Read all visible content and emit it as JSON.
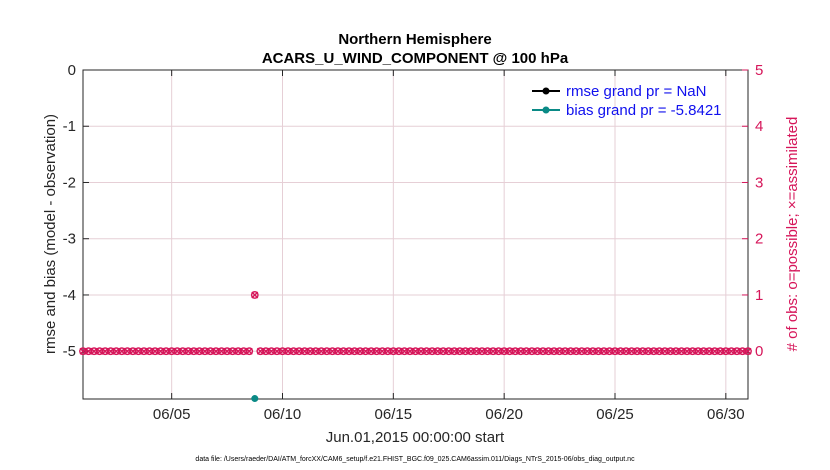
{
  "chart_data": {
    "type": "scatter",
    "title_lines": [
      "Northern Hemisphere",
      "ACARS_U_WIND_COMPONENT @ 100 hPa"
    ],
    "xlabel": "Jun.01,2015 00:00:00 start",
    "ylabel_left": "rmse and bias (model - observation)",
    "ylabel_right": "# of obs: o=possible; ×=assimilated",
    "x_ticks": [
      "06/05",
      "06/10",
      "06/15",
      "06/20",
      "06/25",
      "06/30"
    ],
    "x_tick_days": [
      5,
      10,
      15,
      20,
      25,
      30
    ],
    "x_range_days": [
      1,
      31
    ],
    "ylim_left": [
      -5.85,
      0
    ],
    "y_ticks_left": [
      "0",
      "-1",
      "-2",
      "-3",
      "-4",
      "-5"
    ],
    "y_tick_values_left": [
      0,
      -1,
      -2,
      -3,
      -4,
      -5
    ],
    "ylim_right": [
      -0.85,
      5
    ],
    "y_ticks_right": [
      "5",
      "4",
      "3",
      "2",
      "1",
      "0"
    ],
    "y_tick_values_right": [
      5,
      4,
      3,
      2,
      1,
      0
    ],
    "grid": true,
    "legend_position": "top-right",
    "legend": [
      {
        "label": "rmse grand pr = NaN",
        "color": "#000000"
      },
      {
        "label": "bias grand pr = -5.8421",
        "color": "#0a8a86"
      }
    ],
    "series": [
      {
        "name": "bias",
        "color": "#0a8a86",
        "axis": "left",
        "points": [
          {
            "x": 8.75,
            "y": -5.8421
          }
        ]
      },
      {
        "name": "obs possible",
        "color": "#d6165a",
        "axis": "right",
        "marker": "o",
        "obs_step_days": 0.25,
        "obs_default": 0,
        "obs_nonzero": [
          {
            "x": 8.75,
            "y": 1
          }
        ]
      },
      {
        "name": "obs assimilated",
        "color": "#d6165a",
        "axis": "right",
        "marker": "x",
        "obs_step_days": 0.25,
        "obs_default": 0,
        "obs_nonzero": [
          {
            "x": 8.75,
            "y": 1
          }
        ]
      }
    ],
    "colors": {
      "right_axis": "#d6165a",
      "legend_text": "#1010ee",
      "grid": "#e6cfd6"
    }
  },
  "footnote": "data file: /Users/raeder/DAI/ATM_forcXX/CAM6_setup/f.e21.FHIST_BGC.f09_025.CAM6assim.011/Diags_NTrS_2015-06/obs_diag_output.nc"
}
